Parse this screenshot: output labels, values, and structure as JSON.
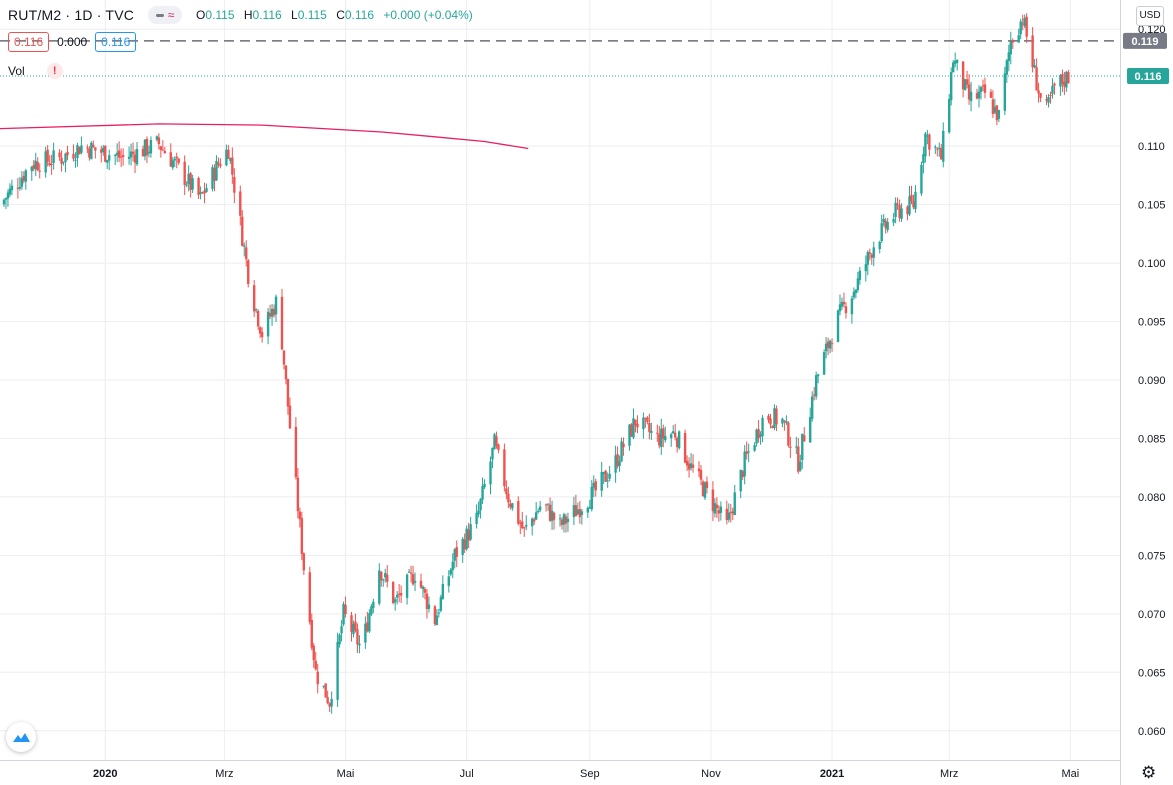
{
  "header": {
    "symbol": "RUT/M2 · 1D · TVC",
    "o_key": "O",
    "o_val": "0.115",
    "h_key": "H",
    "h_val": "0.116",
    "l_key": "L",
    "l_val": "0.115",
    "c_key": "C",
    "c_val": "0.116",
    "change": "+0.000 (+0.04%)",
    "sell_price": "0.116",
    "spread": "0.000",
    "buy_price": "0.116"
  },
  "volume": {
    "label": "Vol"
  },
  "toolbar": {
    "currency": "USD",
    "compare_icon": "compare-icon",
    "warning_icon": "warning-icon",
    "logo": "tradingview-logo",
    "settings_icon": "gear-icon"
  },
  "colors": {
    "up": "#26a69a",
    "down": "#ef5350",
    "ma": "#e91e63",
    "grid": "#eceef2",
    "dashed": "#6a6d78"
  },
  "chart_data": {
    "type": "candlestick",
    "symbol": "RUT/M2",
    "interval": "1D",
    "x_tick_labels": [
      "2020",
      "Mrz",
      "Mai",
      "Jul",
      "Sep",
      "Nov",
      "2021",
      "Mrz",
      "Mai"
    ],
    "x_tick_dates": [
      "2020-01-01",
      "2020-03-01",
      "2020-05-01",
      "2020-07-01",
      "2020-09-01",
      "2020-11-01",
      "2021-01-01",
      "2021-03-01",
      "2021-05-01"
    ],
    "y_ticks": [
      0.06,
      0.065,
      0.07,
      0.075,
      0.08,
      0.085,
      0.09,
      0.095,
      0.1,
      0.105,
      0.11,
      0.12
    ],
    "ylim": [
      0.0575,
      0.1225
    ],
    "xlim": [
      "2019-11-09",
      "2021-05-26"
    ],
    "horizontal_line": {
      "value": 0.119,
      "label": "0.119",
      "style": "dashed"
    },
    "last_price": {
      "value": 0.116,
      "label": "0.116"
    },
    "price_path": [
      [
        "2019-11-09",
        0.105
      ],
      [
        "2019-11-25",
        0.1085
      ],
      [
        "2019-12-10",
        0.109
      ],
      [
        "2019-12-20",
        0.11
      ],
      [
        "2020-01-10",
        0.109
      ],
      [
        "2020-01-28",
        0.1102
      ],
      [
        "2020-02-05",
        0.1085
      ],
      [
        "2020-02-18",
        0.1055
      ],
      [
        "2020-02-27",
        0.1085
      ],
      [
        "2020-03-03",
        0.1098
      ],
      [
        "2020-03-08",
        0.1045
      ],
      [
        "2020-03-14",
        0.098
      ],
      [
        "2020-03-20",
        0.094
      ],
      [
        "2020-03-28",
        0.097
      ],
      [
        "2020-04-03",
        0.086
      ],
      [
        "2020-04-10",
        0.074
      ],
      [
        "2020-04-16",
        0.065
      ],
      [
        "2020-04-23",
        0.0625
      ],
      [
        "2020-04-30",
        0.07
      ],
      [
        "2020-05-09",
        0.067
      ],
      [
        "2020-05-18",
        0.074
      ],
      [
        "2020-05-26",
        0.071
      ],
      [
        "2020-06-05",
        0.0735
      ],
      [
        "2020-06-15",
        0.0695
      ],
      [
        "2020-06-25",
        0.075
      ],
      [
        "2020-07-06",
        0.078
      ],
      [
        "2020-07-15",
        0.0845
      ],
      [
        "2020-07-22",
        0.08
      ],
      [
        "2020-07-30",
        0.077
      ],
      [
        "2020-08-08",
        0.0795
      ],
      [
        "2020-08-17",
        0.0775
      ],
      [
        "2020-08-26",
        0.079
      ],
      [
        "2020-09-04",
        0.0805
      ],
      [
        "2020-09-14",
        0.083
      ],
      [
        "2020-09-24",
        0.0865
      ],
      [
        "2020-10-05",
        0.085
      ],
      [
        "2020-10-14",
        0.0855
      ],
      [
        "2020-10-22",
        0.0825
      ],
      [
        "2020-10-31",
        0.08
      ],
      [
        "2020-11-09",
        0.0775
      ],
      [
        "2020-11-18",
        0.083
      ],
      [
        "2020-11-28",
        0.087
      ],
      [
        "2020-12-07",
        0.0865
      ],
      [
        "2020-12-15",
        0.083
      ],
      [
        "2020-12-24",
        0.09
      ],
      [
        "2021-01-03",
        0.095
      ],
      [
        "2021-01-13",
        0.098
      ],
      [
        "2021-01-23",
        0.102
      ],
      [
        "2021-02-03",
        0.1045
      ],
      [
        "2021-02-11",
        0.105
      ],
      [
        "2021-02-17",
        0.111
      ],
      [
        "2021-02-25",
        0.109
      ],
      [
        "2021-03-03",
        0.1175
      ],
      [
        "2021-03-11",
        0.114
      ],
      [
        "2021-03-19",
        0.1145
      ],
      [
        "2021-03-26",
        0.1125
      ],
      [
        "2021-04-01",
        0.119
      ],
      [
        "2021-04-07",
        0.121
      ],
      [
        "2021-04-12",
        0.117
      ],
      [
        "2021-04-18",
        0.1125
      ],
      [
        "2021-04-23",
        0.115
      ],
      [
        "2021-04-30",
        0.116
      ]
    ],
    "moving_average": {
      "points": [
        [
          "2019-11-09",
          0.1115
        ],
        [
          "2020-01-28",
          0.1119
        ],
        [
          "2020-03-20",
          0.1118
        ],
        [
          "2020-05-20",
          0.1112
        ],
        [
          "2020-06-15",
          0.1108
        ],
        [
          "2020-07-10",
          0.1104
        ],
        [
          "2020-08-01",
          0.1098
        ]
      ]
    }
  }
}
